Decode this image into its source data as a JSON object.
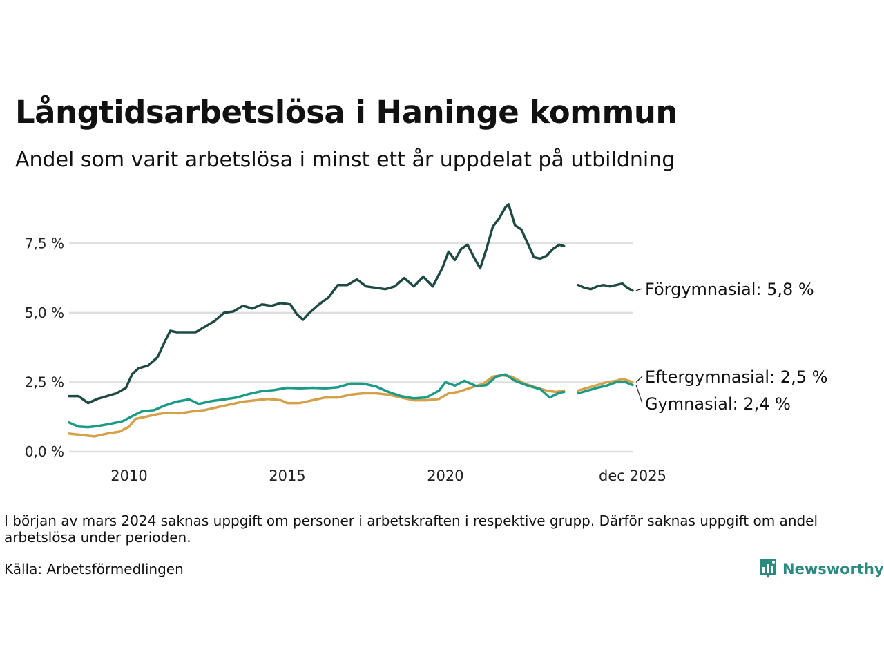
{
  "header": {
    "title": "Långtidsarbetslösa i Haninge kommun",
    "subtitle": "Andel som varit arbetslösa i minst ett år uppdelat på utbildning"
  },
  "footer": {
    "note": "I början av mars 2024 saknas uppgift om personer i arbetskraften i respektive grupp. Därför saknas uppgift om andel arbetslösa under perioden.",
    "source": "Källa: Arbetsförmedlingen",
    "brand": "Newsworthy"
  },
  "colors": {
    "forgymnasial": "#1f4a44",
    "gymnasial": "#1b9a86",
    "eftergymnasial": "#d4a04a",
    "grid": "#dedede",
    "brand": "#2a8a80"
  },
  "chart_data": {
    "type": "line",
    "title": "Långtidsarbetslösa i Haninge kommun",
    "subtitle": "Andel som varit arbetslösa i minst ett år uppdelat på utbildning",
    "xlabel": "",
    "ylabel": "",
    "x_range": [
      2008.1,
      2025.92
    ],
    "ylim": [
      0,
      8.9
    ],
    "y_ticks": [
      0,
      2.5,
      5.0,
      7.5
    ],
    "y_tick_labels": [
      "0,0 %",
      "2,5 %",
      "5,0 %",
      "7,5 %"
    ],
    "x_ticks": [
      2010,
      2015,
      2020,
      2025.92
    ],
    "x_tick_labels": [
      "2010",
      "2015",
      "2020",
      "dec 2025"
    ],
    "grid": true,
    "legend": "direct labels at line ends (right)",
    "series": [
      {
        "name": "Förgymnasial",
        "end_label": "Förgymnasial: 5,8 %",
        "color_key": "forgymnasial",
        "segments": [
          [
            [
              2008.1,
              2.0
            ],
            [
              2008.4,
              2.0
            ],
            [
              2008.7,
              1.75
            ],
            [
              2009.0,
              1.9
            ],
            [
              2009.3,
              2.0
            ],
            [
              2009.6,
              2.1
            ],
            [
              2009.9,
              2.3
            ],
            [
              2010.1,
              2.8
            ],
            [
              2010.3,
              3.0
            ],
            [
              2010.6,
              3.1
            ],
            [
              2010.9,
              3.4
            ],
            [
              2011.1,
              3.9
            ],
            [
              2011.3,
              4.35
            ],
            [
              2011.5,
              4.3
            ],
            [
              2011.8,
              4.3
            ],
            [
              2012.1,
              4.3
            ],
            [
              2012.4,
              4.5
            ],
            [
              2012.7,
              4.7
            ],
            [
              2013.0,
              5.0
            ],
            [
              2013.3,
              5.05
            ],
            [
              2013.6,
              5.25
            ],
            [
              2013.9,
              5.15
            ],
            [
              2014.2,
              5.3
            ],
            [
              2014.5,
              5.25
            ],
            [
              2014.8,
              5.35
            ],
            [
              2015.1,
              5.3
            ],
            [
              2015.3,
              4.95
            ],
            [
              2015.5,
              4.75
            ],
            [
              2015.7,
              5.0
            ],
            [
              2016.0,
              5.3
            ],
            [
              2016.3,
              5.55
            ],
            [
              2016.6,
              6.0
            ],
            [
              2016.9,
              6.0
            ],
            [
              2017.2,
              6.2
            ],
            [
              2017.5,
              5.95
            ],
            [
              2017.8,
              5.9
            ],
            [
              2018.1,
              5.85
            ],
            [
              2018.4,
              5.95
            ],
            [
              2018.7,
              6.25
            ],
            [
              2019.0,
              5.95
            ],
            [
              2019.3,
              6.3
            ],
            [
              2019.6,
              5.95
            ],
            [
              2019.9,
              6.6
            ],
            [
              2020.1,
              7.2
            ],
            [
              2020.3,
              6.9
            ],
            [
              2020.5,
              7.3
            ],
            [
              2020.7,
              7.45
            ],
            [
              2020.9,
              7.0
            ],
            [
              2021.1,
              6.6
            ],
            [
              2021.3,
              7.3
            ],
            [
              2021.5,
              8.1
            ],
            [
              2021.7,
              8.4
            ],
            [
              2021.9,
              8.8
            ],
            [
              2022.0,
              8.9
            ],
            [
              2022.2,
              8.15
            ],
            [
              2022.4,
              8.0
            ],
            [
              2022.6,
              7.5
            ],
            [
              2022.8,
              7.0
            ],
            [
              2023.0,
              6.95
            ],
            [
              2023.2,
              7.05
            ],
            [
              2023.4,
              7.3
            ],
            [
              2023.6,
              7.45
            ],
            [
              2023.75,
              7.4
            ]
          ],
          [
            [
              2024.2,
              6.0
            ],
            [
              2024.4,
              5.9
            ],
            [
              2024.6,
              5.85
            ],
            [
              2024.8,
              5.95
            ],
            [
              2025.0,
              6.0
            ],
            [
              2025.2,
              5.95
            ],
            [
              2025.4,
              6.0
            ],
            [
              2025.6,
              6.05
            ],
            [
              2025.75,
              5.9
            ],
            [
              2025.92,
              5.8
            ]
          ]
        ]
      },
      {
        "name": "Eftergymnasial",
        "end_label": "Eftergymnasial: 2,5 %",
        "color_key": "eftergymnasial",
        "segments": [
          [
            [
              2008.1,
              0.65
            ],
            [
              2008.5,
              0.6
            ],
            [
              2008.9,
              0.55
            ],
            [
              2009.3,
              0.65
            ],
            [
              2009.7,
              0.72
            ],
            [
              2010.0,
              0.9
            ],
            [
              2010.2,
              1.18
            ],
            [
              2010.5,
              1.25
            ],
            [
              2010.9,
              1.35
            ],
            [
              2011.2,
              1.4
            ],
            [
              2011.6,
              1.38
            ],
            [
              2012.0,
              1.45
            ],
            [
              2012.4,
              1.5
            ],
            [
              2012.8,
              1.6
            ],
            [
              2013.2,
              1.7
            ],
            [
              2013.6,
              1.8
            ],
            [
              2014.0,
              1.85
            ],
            [
              2014.4,
              1.9
            ],
            [
              2014.8,
              1.85
            ],
            [
              2015.0,
              1.75
            ],
            [
              2015.4,
              1.75
            ],
            [
              2015.8,
              1.85
            ],
            [
              2016.2,
              1.95
            ],
            [
              2016.6,
              1.95
            ],
            [
              2017.0,
              2.05
            ],
            [
              2017.4,
              2.1
            ],
            [
              2017.8,
              2.1
            ],
            [
              2018.2,
              2.05
            ],
            [
              2018.6,
              1.95
            ],
            [
              2019.0,
              1.85
            ],
            [
              2019.4,
              1.85
            ],
            [
              2019.8,
              1.9
            ],
            [
              2020.1,
              2.1
            ],
            [
              2020.4,
              2.15
            ],
            [
              2020.8,
              2.3
            ],
            [
              2021.2,
              2.45
            ],
            [
              2021.5,
              2.7
            ],
            [
              2021.8,
              2.75
            ],
            [
              2022.1,
              2.7
            ],
            [
              2022.5,
              2.45
            ],
            [
              2022.9,
              2.3
            ],
            [
              2023.2,
              2.2
            ],
            [
              2023.5,
              2.15
            ],
            [
              2023.75,
              2.2
            ]
          ],
          [
            [
              2024.2,
              2.2
            ],
            [
              2024.5,
              2.3
            ],
            [
              2024.8,
              2.4
            ],
            [
              2025.1,
              2.5
            ],
            [
              2025.4,
              2.55
            ],
            [
              2025.6,
              2.62
            ],
            [
              2025.8,
              2.55
            ],
            [
              2025.92,
              2.5
            ]
          ]
        ]
      },
      {
        "name": "Gymnasial",
        "end_label": "Gymnasial: 2,4 %",
        "color_key": "gymnasial",
        "segments": [
          [
            [
              2008.1,
              1.05
            ],
            [
              2008.4,
              0.9
            ],
            [
              2008.7,
              0.88
            ],
            [
              2009.0,
              0.92
            ],
            [
              2009.4,
              1.0
            ],
            [
              2009.8,
              1.1
            ],
            [
              2010.1,
              1.28
            ],
            [
              2010.4,
              1.45
            ],
            [
              2010.8,
              1.5
            ],
            [
              2011.1,
              1.65
            ],
            [
              2011.5,
              1.8
            ],
            [
              2011.9,
              1.88
            ],
            [
              2012.2,
              1.72
            ],
            [
              2012.6,
              1.82
            ],
            [
              2013.0,
              1.88
            ],
            [
              2013.4,
              1.95
            ],
            [
              2013.8,
              2.08
            ],
            [
              2014.2,
              2.18
            ],
            [
              2014.6,
              2.22
            ],
            [
              2015.0,
              2.3
            ],
            [
              2015.4,
              2.28
            ],
            [
              2015.8,
              2.3
            ],
            [
              2016.2,
              2.28
            ],
            [
              2016.6,
              2.32
            ],
            [
              2017.0,
              2.45
            ],
            [
              2017.4,
              2.45
            ],
            [
              2017.8,
              2.35
            ],
            [
              2018.2,
              2.15
            ],
            [
              2018.6,
              2.0
            ],
            [
              2019.0,
              1.92
            ],
            [
              2019.4,
              1.95
            ],
            [
              2019.8,
              2.2
            ],
            [
              2020.0,
              2.5
            ],
            [
              2020.3,
              2.38
            ],
            [
              2020.6,
              2.55
            ],
            [
              2021.0,
              2.35
            ],
            [
              2021.3,
              2.4
            ],
            [
              2021.6,
              2.7
            ],
            [
              2021.9,
              2.78
            ],
            [
              2022.2,
              2.55
            ],
            [
              2022.6,
              2.38
            ],
            [
              2023.0,
              2.25
            ],
            [
              2023.3,
              1.95
            ],
            [
              2023.6,
              2.12
            ],
            [
              2023.75,
              2.15
            ]
          ],
          [
            [
              2024.2,
              2.1
            ],
            [
              2024.5,
              2.2
            ],
            [
              2024.8,
              2.3
            ],
            [
              2025.1,
              2.38
            ],
            [
              2025.4,
              2.5
            ],
            [
              2025.7,
              2.5
            ],
            [
              2025.92,
              2.4
            ]
          ]
        ]
      }
    ]
  }
}
